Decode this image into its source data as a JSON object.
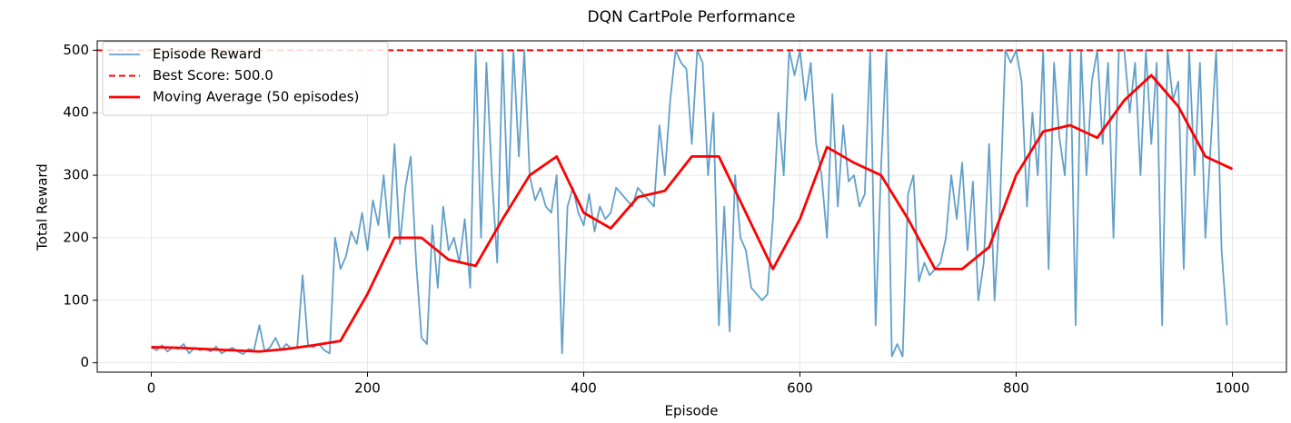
{
  "chart_data": {
    "type": "line",
    "title": "DQN CartPole Performance",
    "xlabel": "Episode",
    "ylabel": "Total Reward",
    "xlim": [
      -50,
      1050
    ],
    "ylim": [
      -15,
      515
    ],
    "xticks": [
      0,
      200,
      400,
      600,
      800,
      1000
    ],
    "yticks": [
      0,
      100,
      200,
      300,
      400,
      500
    ],
    "grid": true,
    "legend": "upper left",
    "series": [
      {
        "name": "Episode Reward",
        "color": "#1f77b4",
        "x": [
          0,
          5,
          10,
          15,
          20,
          25,
          30,
          35,
          40,
          45,
          50,
          55,
          60,
          65,
          70,
          75,
          80,
          85,
          90,
          95,
          100,
          105,
          110,
          115,
          120,
          125,
          130,
          135,
          140,
          145,
          150,
          155,
          160,
          165,
          170,
          175,
          180,
          185,
          190,
          195,
          200,
          205,
          210,
          215,
          220,
          225,
          230,
          235,
          240,
          245,
          250,
          255,
          260,
          265,
          270,
          275,
          280,
          285,
          290,
          295,
          300,
          305,
          310,
          315,
          320,
          325,
          330,
          335,
          340,
          345,
          350,
          355,
          360,
          365,
          370,
          375,
          380,
          385,
          390,
          395,
          400,
          405,
          410,
          415,
          420,
          425,
          430,
          435,
          440,
          445,
          450,
          455,
          460,
          465,
          470,
          475,
          480,
          485,
          490,
          495,
          500,
          505,
          510,
          515,
          520,
          525,
          530,
          535,
          540,
          545,
          550,
          555,
          560,
          565,
          570,
          575,
          580,
          585,
          590,
          595,
          600,
          605,
          610,
          615,
          620,
          625,
          630,
          635,
          640,
          645,
          650,
          655,
          660,
          665,
          670,
          675,
          680,
          685,
          690,
          695,
          700,
          705,
          710,
          715,
          720,
          725,
          730,
          735,
          740,
          745,
          750,
          755,
          760,
          765,
          770,
          775,
          780,
          785,
          790,
          795,
          800,
          805,
          810,
          815,
          820,
          825,
          830,
          835,
          840,
          845,
          850,
          855,
          860,
          865,
          870,
          875,
          880,
          885,
          890,
          895,
          900,
          905,
          910,
          915,
          920,
          925,
          930,
          935,
          940,
          945,
          950,
          955,
          960,
          965,
          970,
          975,
          980,
          985,
          990,
          995
        ],
        "values": [
          25,
          20,
          28,
          18,
          25,
          22,
          30,
          15,
          24,
          20,
          22,
          18,
          26,
          15,
          20,
          24,
          18,
          14,
          22,
          20,
          60,
          18,
          25,
          40,
          20,
          30,
          22,
          25,
          140,
          28,
          25,
          30,
          20,
          15,
          200,
          150,
          170,
          210,
          190,
          240,
          180,
          260,
          220,
          300,
          200,
          350,
          190,
          280,
          330,
          160,
          40,
          30,
          220,
          120,
          250,
          180,
          200,
          160,
          230,
          120,
          500,
          200,
          480,
          300,
          160,
          500,
          250,
          500,
          330,
          500,
          300,
          260,
          280,
          250,
          240,
          300,
          15,
          250,
          280,
          240,
          220,
          270,
          210,
          250,
          230,
          240,
          280,
          270,
          260,
          250,
          280,
          270,
          260,
          250,
          380,
          300,
          420,
          500,
          480,
          470,
          350,
          500,
          480,
          300,
          400,
          60,
          250,
          50,
          300,
          200,
          180,
          120,
          110,
          100,
          110,
          230,
          400,
          300,
          500,
          460,
          500,
          420,
          480,
          350,
          300,
          200,
          430,
          250,
          380,
          290,
          300,
          250,
          270,
          500,
          60,
          310,
          500,
          10,
          30,
          10,
          270,
          300,
          130,
          160,
          140,
          150,
          160,
          200,
          300,
          230,
          320,
          180,
          290,
          100,
          160,
          350,
          100,
          250,
          500,
          480,
          500,
          450,
          250,
          400,
          300,
          500,
          150,
          480,
          360,
          300,
          500,
          60,
          500,
          300,
          450,
          500,
          350,
          480,
          200,
          500,
          500,
          400,
          480,
          300,
          500,
          350,
          480,
          60,
          500,
          420,
          450,
          150,
          500,
          300,
          480,
          200,
          350,
          500,
          180,
          60
        ]
      },
      {
        "name": "Best Score: 500.0",
        "color": "#ff0000",
        "style": "dashed",
        "value": 500
      },
      {
        "name": "Moving Average (50 episodes)",
        "color": "#ff0000",
        "x": [
          0,
          25,
          50,
          75,
          100,
          125,
          150,
          175,
          200,
          225,
          250,
          275,
          300,
          325,
          350,
          375,
          400,
          425,
          450,
          475,
          500,
          525,
          550,
          575,
          600,
          625,
          650,
          675,
          700,
          725,
          750,
          775,
          800,
          825,
          850,
          875,
          900,
          925,
          950,
          975,
          1000
        ],
        "values": [
          25,
          24,
          22,
          20,
          18,
          22,
          28,
          35,
          110,
          200,
          200,
          165,
          155,
          230,
          300,
          330,
          240,
          215,
          265,
          275,
          330,
          330,
          240,
          150,
          230,
          345,
          320,
          300,
          230,
          150,
          150,
          185,
          300,
          370,
          380,
          360,
          420,
          460,
          410,
          330,
          310
        ]
      }
    ]
  }
}
